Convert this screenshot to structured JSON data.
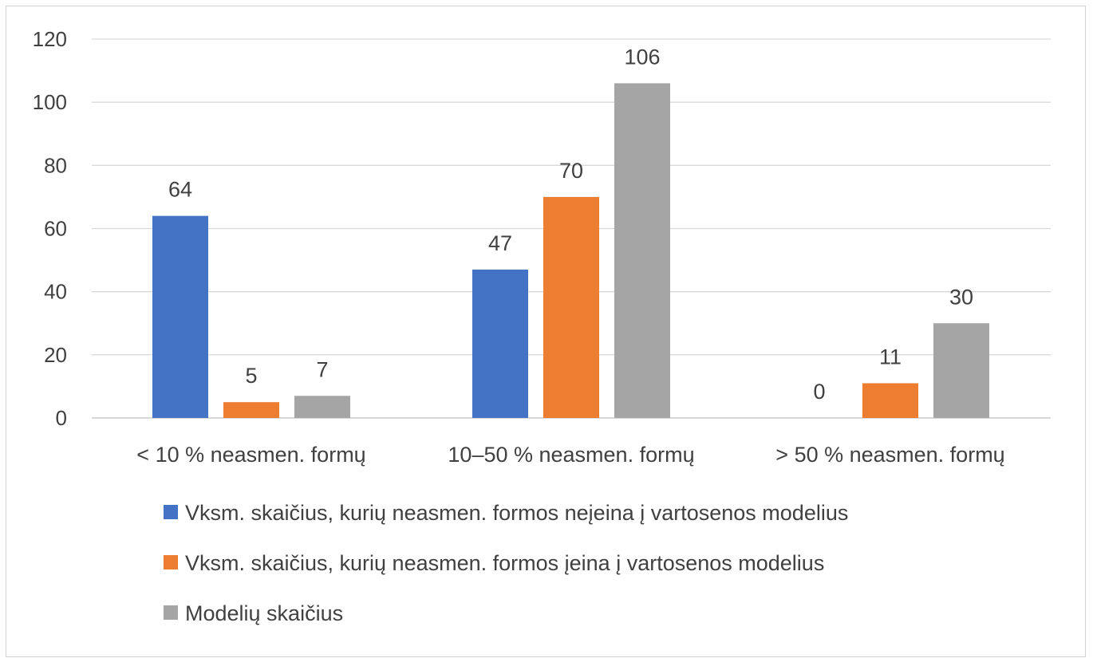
{
  "chart_data": {
    "type": "bar",
    "categories": [
      "< 10 % neasmen. formų",
      "10–50 % neasmen. formų",
      "> 50 % neasmen. formų"
    ],
    "series": [
      {
        "name": "Vksm. skaičius, kurių neasmen. formos neįeina į vartosenos modelius",
        "color": "#4472c4",
        "values": [
          64,
          47,
          0
        ]
      },
      {
        "name": "Vksm. skaičius, kurių neasmen. formos įeina į vartosenos modelius",
        "color": "#ed7d31",
        "values": [
          5,
          70,
          11
        ]
      },
      {
        "name": "Modelių skaičius",
        "color": "#a5a5a5",
        "values": [
          7,
          106,
          30
        ]
      }
    ],
    "y_ticks": [
      "0",
      "20",
      "40",
      "60",
      "80",
      "100",
      "120"
    ],
    "ylim": [
      0,
      120
    ],
    "grid": true,
    "legend_position": "bottom",
    "data_labels": true
  }
}
